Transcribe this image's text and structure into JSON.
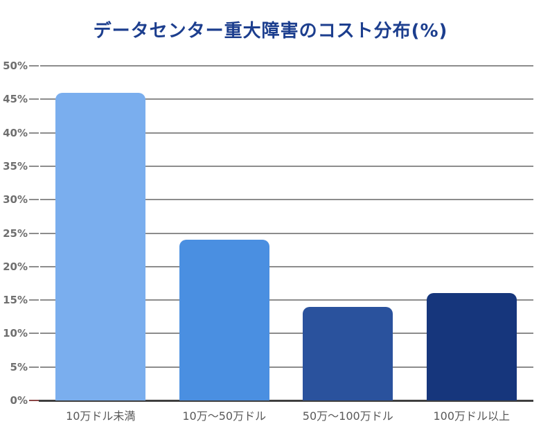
{
  "chart_data": {
    "type": "bar",
    "title": "データセンター重大障害のコスト分布(%)",
    "categories": [
      "10万ドル未満",
      "10万〜50万ドル",
      "50万〜100万ドル",
      "100万ドル以上"
    ],
    "values": [
      46,
      24,
      14,
      16
    ],
    "bar_colors": [
      "#7aaeee",
      "#4a8fe1",
      "#2a529d",
      "#16367c"
    ],
    "xlabel": "",
    "ylabel": "",
    "ylim": [
      0,
      50
    ],
    "ytick_step": 5,
    "ytick_suffix": "%",
    "grid": true,
    "legend": false,
    "colors": {
      "title": "#1c3e8e",
      "gridline": "#8c8c8c",
      "axis_line": "#3f3f3f",
      "tick": "#8c8c8c",
      "zero_tick": "#8c4646",
      "y_label": "#6f6f6f",
      "x_label": "#595959"
    }
  }
}
